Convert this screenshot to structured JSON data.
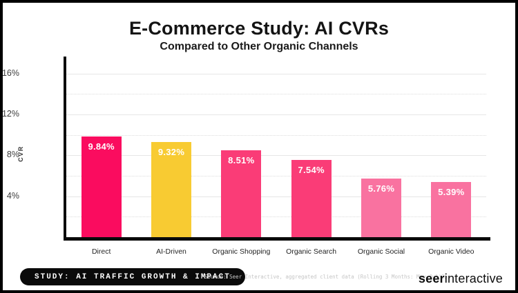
{
  "header": {
    "title": "E-Commerce Study: AI CVRs",
    "subtitle": "Compared to Other Organic Channels"
  },
  "chart_data": {
    "type": "bar",
    "title": "E-Commerce Study: AI CVRs",
    "subtitle": "Compared to Other Organic Channels",
    "categories": [
      "Direct",
      "AI-Driven",
      "Organic Shopping",
      "Organic Search",
      "Organic Social",
      "Organic Video"
    ],
    "values": [
      9.84,
      9.32,
      8.51,
      7.54,
      5.76,
      5.39
    ],
    "value_labels": [
      "9.84%",
      "9.32%",
      "8.51%",
      "7.54%",
      "5.76%",
      "5.39%"
    ],
    "bar_colors": [
      "#FA0C5F",
      "#F8CB32",
      "#FA3C77",
      "#FA3C77",
      "#F972A0",
      "#F972A0"
    ],
    "xlabel": "",
    "ylabel": "CVR",
    "ylim": [
      0,
      17.2
    ],
    "yticks": [
      4,
      8,
      12,
      16
    ],
    "ytick_labels": [
      "4%",
      "8%",
      "12%",
      "16%"
    ],
    "minor_gridlines": [
      2,
      6,
      10,
      14
    ],
    "grid": "horizontal; solid light-gray at major ticks, dotted at 2%-step minors",
    "legend_position": "none",
    "value_label_color": "#ffffff"
  },
  "footer": {
    "badge": "STUDY: AI TRAFFIC GROWTH & IMPACT",
    "source": "Source: Seer Interactive, aggregated client data (Rolling 3 Months: May-Jul'25)",
    "logo_bold": "seer",
    "logo_regular": "interactive"
  }
}
